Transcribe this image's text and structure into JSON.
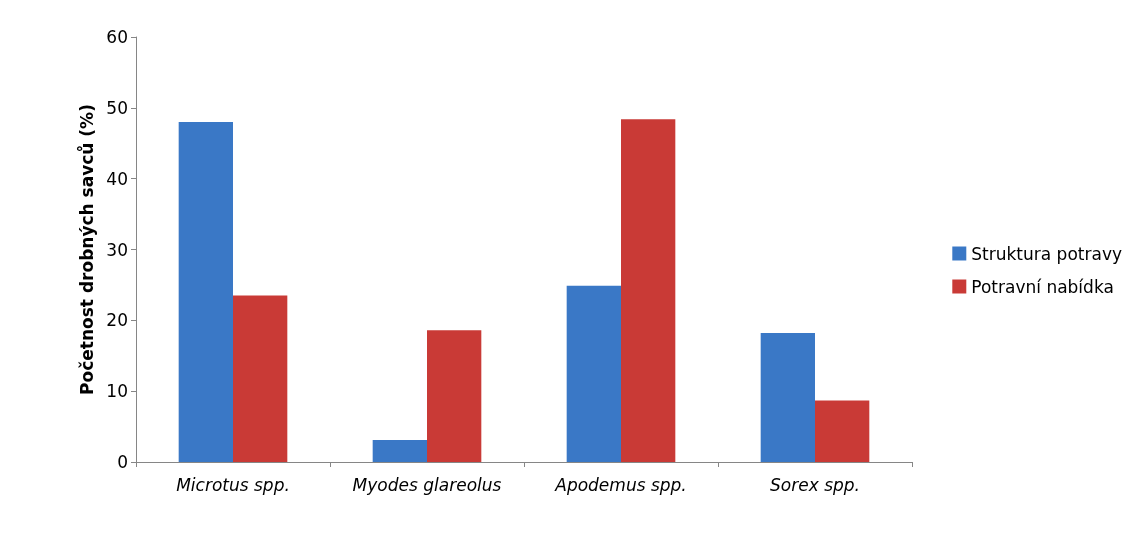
{
  "chart_data": {
    "type": "bar",
    "ylabel": "Početnost drobných savců (%)",
    "categories": [
      "Microtus spp.",
      "Myodes glareolus",
      "Apodemus spp.",
      "Sorex spp."
    ],
    "series": [
      {
        "name": "Struktura potravy",
        "color": "#3a78c6",
        "values": [
          48.0,
          3.1,
          24.9,
          18.2
        ]
      },
      {
        "name": "Potravní nabídka",
        "color": "#c93a36",
        "values": [
          23.5,
          18.6,
          48.4,
          8.7
        ]
      }
    ],
    "ylim": [
      0,
      60
    ],
    "yticks": [
      0,
      10,
      20,
      30,
      40,
      50,
      60
    ],
    "grid": false,
    "legend": "right"
  }
}
